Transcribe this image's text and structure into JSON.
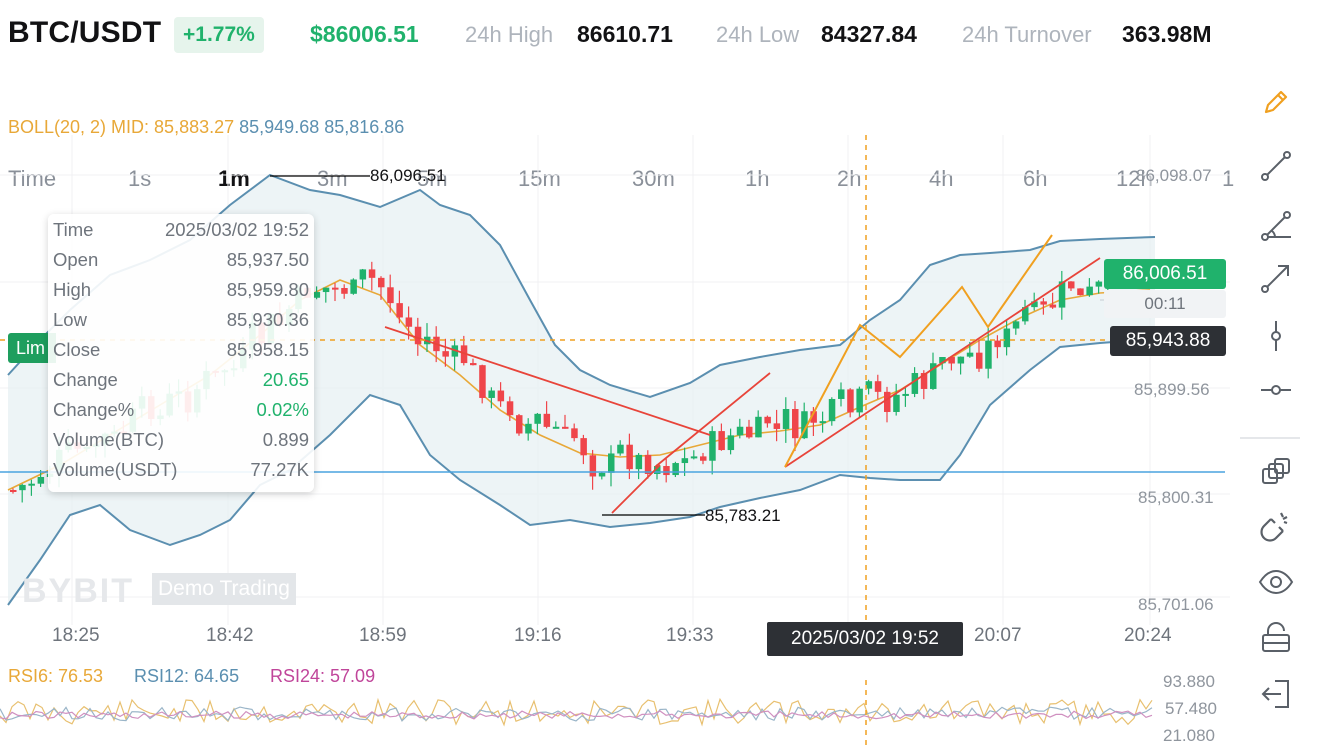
{
  "header": {
    "pair": "BTC/USDT",
    "change_pct": "+1.77%",
    "last_price": "$86006.51",
    "stats": [
      {
        "label": "24h High",
        "value": "86610.71"
      },
      {
        "label": "24h Low",
        "value": "84327.84"
      },
      {
        "label": "24h Turnover",
        "value": "363.98M"
      }
    ],
    "fullscreen_icon": "collapse-icon"
  },
  "timeframes": [
    "Time",
    "1s",
    "1m",
    "3m",
    "5m",
    "15m",
    "30m",
    "1h",
    "2h",
    "4h",
    "6h",
    "12h",
    "1"
  ],
  "active_timeframe": "1m",
  "indicator": {
    "boll_label": "BOLL(20, 2) MID: 85,883.27",
    "boll_upper": "85,949.68",
    "boll_lower": "85,816.86"
  },
  "tooltip": {
    "rows": [
      {
        "key": "Time",
        "value": "2025/03/02 19:52"
      },
      {
        "key": "Open",
        "value": "85,937.50"
      },
      {
        "key": "High",
        "value": "85,959.80"
      },
      {
        "key": "Low",
        "value": "85,930.36"
      },
      {
        "key": "Close",
        "value": "85,958.15"
      },
      {
        "key": "Change",
        "value": "20.65"
      },
      {
        "key": "Change%",
        "value": "0.02%"
      },
      {
        "key": "Volume(BTC)",
        "value": "0.899"
      },
      {
        "key": "Volume(USDT)",
        "value": "77.27K"
      }
    ]
  },
  "chart": {
    "price_axis": [
      "86,098.07",
      "85,899.56",
      "85,800.31",
      "85,701.06"
    ],
    "time_axis": [
      "18:25",
      "18:42",
      "18:59",
      "19:16",
      "19:33",
      "20:07",
      "20:24"
    ],
    "crosshair_time": "2025/03/02 19:52",
    "last_price_badge": "86,006.51",
    "countdown": "00:11",
    "crosshair_price": "85,943.88",
    "high_marker": "86,096.51",
    "low_marker": "85,783.21",
    "limit_badge": "Lim",
    "watermark_logo": "BYBIT",
    "watermark_text": "Demo Trading",
    "colors": {
      "up": "#20b26c",
      "down": "#ef454a",
      "boll_mid": "#e8a838",
      "boll_band": "#5b8fb0",
      "crosshair": "#f0a020",
      "drawing": "#e8443a",
      "drawing2": "#f0a020",
      "hline": "#4aa3df"
    }
  },
  "rsi": {
    "rsi6": "RSI6: 76.53",
    "rsi12": "RSI12: 64.65",
    "rsi24": "RSI24: 57.09",
    "axis": [
      "93.880",
      "57.480",
      "21.080"
    ]
  },
  "toolbar": [
    "pencil-icon",
    "line-segment-icon",
    "angle-line-icon",
    "arrow-line-icon",
    "vertical-line-icon",
    "horizontal-line-icon",
    "layers-icon",
    "magnet-icon",
    "eye-icon",
    "lock-icon",
    "exit-icon"
  ]
}
